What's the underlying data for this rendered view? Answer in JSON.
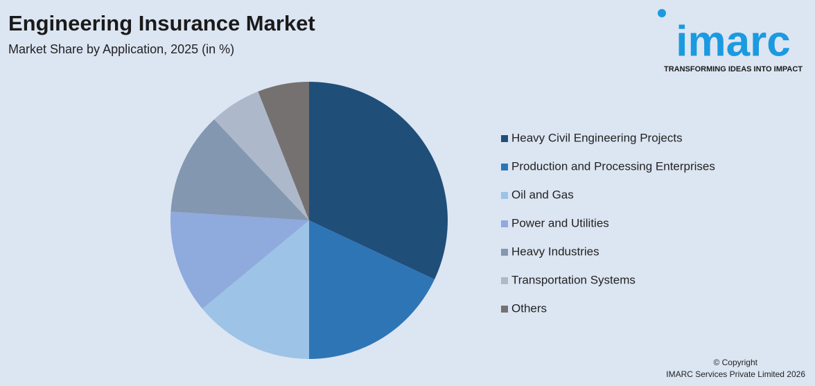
{
  "chart_data": {
    "type": "pie",
    "title": "Engineering Insurance Market",
    "subtitle": "Market Share by Application, 2025 (in %)",
    "categories": [
      "Heavy Civil Engineering Projects",
      "Production and Processing Enterprises",
      "Oil and Gas",
      "Power and Utilities",
      "Heavy Industries",
      "Transportation Systems",
      "Others"
    ],
    "values": [
      32,
      18,
      14,
      12,
      12,
      6,
      6
    ],
    "colors": [
      "#1f4e79",
      "#2e75b6",
      "#9dc3e6",
      "#8faadc",
      "#8497b0",
      "#adb9ca",
      "#767171"
    ],
    "legend": "right"
  },
  "logo": {
    "name": "imarc",
    "tagline": "TRANSFORMING IDEAS INTO IMPACT"
  },
  "footer": {
    "line1": "© Copyright",
    "line2": "IMARC Services Private Limited 2026"
  }
}
